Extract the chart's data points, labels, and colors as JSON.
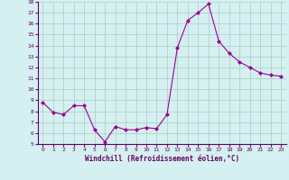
{
  "x": [
    0,
    1,
    2,
    3,
    4,
    5,
    6,
    7,
    8,
    9,
    10,
    11,
    12,
    13,
    14,
    15,
    16,
    17,
    18,
    19,
    20,
    21,
    22,
    23
  ],
  "y": [
    8.8,
    7.9,
    7.7,
    8.5,
    8.5,
    6.3,
    5.2,
    6.6,
    6.3,
    6.3,
    6.5,
    6.4,
    7.7,
    13.8,
    16.3,
    17.0,
    17.8,
    14.4,
    13.3,
    12.5,
    12.0,
    11.5,
    11.3,
    11.2
  ],
  "line_color": "#990099",
  "marker": "D",
  "marker_size": 2,
  "bg_color": "#d4f0f0",
  "grid_color": "#b0c8c8",
  "xlabel": "Windchill (Refroidissement éolien,°C)",
  "xlabel_color": "#660066",
  "tick_color": "#660066",
  "ylim": [
    5,
    18
  ],
  "xlim": [
    -0.5,
    23.5
  ],
  "yticks": [
    5,
    6,
    7,
    8,
    9,
    10,
    11,
    12,
    13,
    14,
    15,
    16,
    17,
    18
  ],
  "xticks": [
    0,
    1,
    2,
    3,
    4,
    5,
    6,
    7,
    8,
    9,
    10,
    11,
    12,
    13,
    14,
    15,
    16,
    17,
    18,
    19,
    20,
    21,
    22,
    23
  ]
}
